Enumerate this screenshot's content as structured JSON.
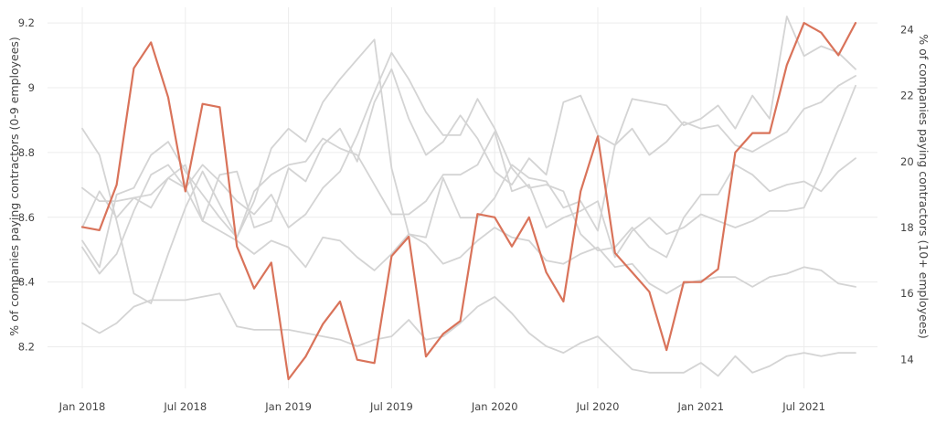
{
  "chart_data": {
    "type": "line",
    "x": [
      "2018-01",
      "2018-02",
      "2018-03",
      "2018-04",
      "2018-05",
      "2018-06",
      "2018-07",
      "2018-08",
      "2018-09",
      "2018-10",
      "2018-11",
      "2018-12",
      "2019-01",
      "2019-02",
      "2019-03",
      "2019-04",
      "2019-05",
      "2019-06",
      "2019-07",
      "2019-08",
      "2019-09",
      "2019-10",
      "2019-11",
      "2019-12",
      "2020-01",
      "2020-02",
      "2020-03",
      "2020-04",
      "2020-05",
      "2020-06",
      "2020-07",
      "2020-08",
      "2020-09",
      "2020-10",
      "2020-11",
      "2020-12",
      "2021-01",
      "2021-02",
      "2021-03",
      "2021-04",
      "2021-05",
      "2021-06",
      "2021-07",
      "2021-08",
      "2021-09",
      "2021-10"
    ],
    "x_ticks": [
      {
        "x": "2018-01",
        "label": "Jan 2018"
      },
      {
        "x": "2018-07",
        "label": "Jul 2018"
      },
      {
        "x": "2019-01",
        "label": "Jan 2019"
      },
      {
        "x": "2019-07",
        "label": "Jul 2019"
      },
      {
        "x": "2020-01",
        "label": "Jan 2020"
      },
      {
        "x": "2020-07",
        "label": "Jul 2020"
      },
      {
        "x": "2021-01",
        "label": "Jan 2021"
      },
      {
        "x": "2021-07",
        "label": "Jul 2021"
      }
    ],
    "ylabel": "% of companies paying contractors (0-9 employees)",
    "ylabel_right": "% of companies paying contractors (10+ employees)",
    "ylim": [
      8.1,
      9.22
    ],
    "y_ticks": [
      8.2,
      8.4,
      8.6,
      8.8,
      9,
      9.2
    ],
    "y_tick_labels": [
      "8.2",
      "8.4",
      "8.6",
      "8.8",
      "9",
      "9.2"
    ],
    "ylim_right": [
      13.4,
      24.4
    ],
    "y_ticks_right": [
      14,
      16,
      18,
      20,
      22,
      24
    ],
    "y_tick_labels_right": [
      "14",
      "16",
      "18",
      "20",
      "22",
      "24"
    ],
    "grid": true,
    "legend": "none",
    "colors": {
      "highlight": "#d9735a",
      "background_series": "#d4d4d4",
      "grid": "#ececec"
    },
    "series": [
      {
        "axis": "right",
        "highlight": false,
        "values": [
          17.4,
          16.6,
          17.2,
          18.5,
          19.6,
          19.9,
          19.2,
          19.9,
          19.4,
          18.8,
          18.4,
          19.0,
          18.0,
          18.4,
          19.2,
          19.7,
          20.8,
          22.1,
          23.3,
          22.5,
          21.5,
          20.8,
          20.8,
          21.9,
          21.0,
          19.8,
          19.2,
          19.3,
          19.1,
          17.8,
          17.3,
          17.4,
          18.0,
          17.4,
          17.1,
          18.3,
          19.0,
          19.0,
          19.9,
          19.6,
          19.1,
          19.3,
          19.4,
          19.1,
          19.7,
          20.1
        ]
      },
      {
        "axis": "right",
        "highlight": false,
        "values": [
          15.1,
          14.8,
          15.1,
          15.6,
          15.8,
          15.8,
          15.8,
          15.9,
          16.0,
          15.0,
          14.9,
          14.9,
          14.9,
          14.8,
          14.7,
          14.6,
          14.4,
          14.6,
          14.7,
          15.2,
          14.6,
          14.7,
          15.1,
          15.6,
          15.9,
          15.4,
          14.8,
          14.4,
          14.2,
          14.5,
          14.7,
          14.2,
          13.7,
          13.6,
          13.6,
          13.6,
          13.9,
          13.5,
          14.1,
          13.6,
          13.8,
          14.1,
          14.2,
          14.1,
          14.2,
          14.2
        ]
      },
      {
        "axis": "right",
        "highlight": false,
        "values": [
          19.2,
          18.8,
          18.8,
          18.9,
          18.6,
          19.5,
          19.9,
          18.2,
          17.9,
          17.6,
          17.2,
          17.6,
          17.4,
          16.8,
          17.7,
          17.6,
          17.1,
          16.7,
          17.2,
          17.8,
          17.5,
          16.9,
          17.1,
          17.6,
          18.0,
          17.7,
          17.6,
          17.0,
          16.9,
          17.2,
          17.4,
          16.8,
          16.9,
          16.3,
          16.0,
          16.3,
          16.4,
          16.5,
          16.5,
          16.2,
          16.5,
          16.6,
          16.8,
          16.7,
          16.3,
          16.2
        ]
      },
      {
        "axis": "right",
        "highlight": false,
        "values": [
          21.0,
          20.2,
          18.2,
          16.0,
          15.7,
          17.2,
          18.6,
          19.7,
          18.7,
          17.7,
          19.1,
          19.6,
          19.9,
          20.0,
          20.7,
          20.4,
          20.2,
          19.3,
          18.4,
          18.4,
          18.8,
          19.6,
          19.6,
          19.9,
          20.9,
          19.1,
          19.3,
          18.0,
          18.3,
          18.5,
          18.8,
          17.1,
          17.9,
          18.3,
          17.8,
          18.0,
          18.4,
          18.2,
          18.0,
          18.2,
          18.5,
          18.5,
          18.6,
          19.7,
          21.0,
          22.3
        ]
      },
      {
        "axis": "right",
        "highlight": false,
        "values": [
          17.6,
          16.8,
          19.0,
          19.2,
          20.2,
          20.6,
          19.7,
          19.0,
          18.3,
          17.7,
          18.8,
          20.4,
          21.0,
          20.6,
          21.8,
          22.5,
          23.1,
          23.7,
          19.8,
          17.8,
          17.7,
          19.5,
          18.3,
          18.3,
          18.9,
          19.9,
          19.5,
          19.4,
          18.6,
          18.8,
          17.9,
          20.5,
          21.9,
          21.8,
          21.7,
          21.1,
          21.3,
          21.7,
          21.0,
          22.0,
          21.3,
          24.4,
          23.2,
          23.5,
          23.3,
          22.8
        ]
      },
      {
        "axis": "right",
        "highlight": false,
        "values": [
          18.0,
          19.1,
          18.3,
          18.9,
          19.0,
          19.5,
          19.2,
          18.2,
          19.6,
          19.7,
          18.0,
          18.2,
          19.8,
          19.4,
          20.5,
          21.0,
          20.0,
          21.8,
          22.8,
          21.3,
          20.2,
          20.6,
          21.4,
          20.7,
          19.7,
          19.3,
          20.1,
          19.6,
          21.8,
          22.0,
          20.8,
          20.5,
          21.0,
          20.2,
          20.6,
          21.2,
          21.0,
          21.1,
          20.5,
          20.3,
          20.6,
          20.9,
          21.6,
          21.8,
          22.3,
          22.6
        ]
      },
      {
        "axis": "left",
        "highlight": true,
        "values": [
          8.57,
          8.56,
          8.7,
          9.06,
          9.14,
          8.97,
          8.68,
          8.95,
          8.94,
          8.51,
          8.38,
          8.46,
          8.1,
          8.17,
          8.27,
          8.34,
          8.16,
          8.15,
          8.48,
          8.54,
          8.17,
          8.24,
          8.28,
          8.61,
          8.6,
          8.51,
          8.6,
          8.43,
          8.34,
          8.68,
          8.85,
          8.49,
          8.43,
          8.37,
          8.19,
          8.4,
          8.4,
          8.44,
          8.8,
          8.86,
          8.86,
          9.07,
          9.2,
          9.17,
          9.1,
          9.2
        ]
      }
    ]
  }
}
